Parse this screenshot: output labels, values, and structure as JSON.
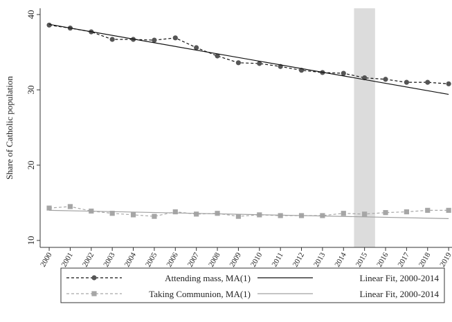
{
  "chart_data": {
    "type": "line",
    "ylabel": "Share of Catholic population",
    "x": [
      2000,
      2001,
      2002,
      2003,
      2004,
      2005,
      2006,
      2007,
      2008,
      2009,
      2010,
      2011,
      2012,
      2013,
      2014,
      2015,
      2016,
      2017,
      2018,
      2019
    ],
    "xlim": [
      1999.57,
      2019.16
    ],
    "xticks": [
      2000,
      2001,
      2002,
      2003,
      2004,
      2005,
      2006,
      2007,
      2008,
      2009,
      2010,
      2011,
      2012,
      2013,
      2014,
      2015,
      2016,
      2017,
      2018,
      2019
    ],
    "ylim": [
      9.08,
      40.83
    ],
    "yticks": [
      10,
      20,
      30,
      40
    ],
    "shaded_range": [
      2014.5,
      2015.5
    ],
    "shaded_color": "#dcdcdc",
    "series": [
      {
        "name": "Attending mass, MA(1)",
        "color": "#555555",
        "line_style": "dashed",
        "marker": "circle",
        "values": [
          38.6,
          38.2,
          37.7,
          36.7,
          36.7,
          36.6,
          36.9,
          35.6,
          34.5,
          33.6,
          33.5,
          33.1,
          32.6,
          32.3,
          32.2,
          31.6,
          31.4,
          31.0,
          31.0,
          30.8
        ]
      },
      {
        "name": "Linear Fit, 2000-2014",
        "color": "#111111",
        "line_style": "solid",
        "x": [
          2000,
          2019
        ],
        "values": [
          38.7,
          29.4
        ]
      },
      {
        "name": "Taking Communion, MA(1)",
        "color": "#a6a6a6",
        "line_style": "dashed",
        "marker": "square",
        "values": [
          14.3,
          14.5,
          13.9,
          13.6,
          13.4,
          13.2,
          13.8,
          13.5,
          13.6,
          13.2,
          13.4,
          13.3,
          13.3,
          13.3,
          13.6,
          13.5,
          13.7,
          13.8,
          14.0,
          14.0
        ]
      },
      {
        "name": "Linear Fit, 2000-2014",
        "color": "#a0a0a0",
        "line_style": "solid",
        "x": [
          2000,
          2019
        ],
        "values": [
          14.0,
          12.9
        ]
      }
    ]
  }
}
